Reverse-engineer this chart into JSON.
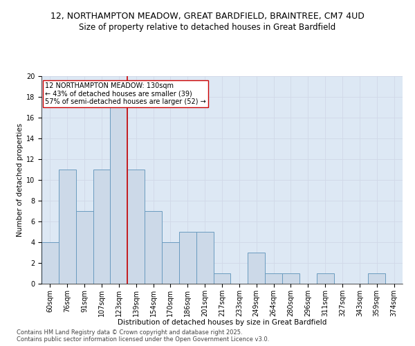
{
  "title_line1": "12, NORTHAMPTON MEADOW, GREAT BARDFIELD, BRAINTREE, CM7 4UD",
  "title_line2": "Size of property relative to detached houses in Great Bardfield",
  "xlabel": "Distribution of detached houses by size in Great Bardfield",
  "ylabel": "Number of detached properties",
  "bar_labels": [
    "60sqm",
    "76sqm",
    "91sqm",
    "107sqm",
    "123sqm",
    "139sqm",
    "154sqm",
    "170sqm",
    "186sqm",
    "201sqm",
    "217sqm",
    "233sqm",
    "249sqm",
    "264sqm",
    "280sqm",
    "296sqm",
    "311sqm",
    "327sqm",
    "343sqm",
    "359sqm",
    "374sqm"
  ],
  "bar_values": [
    4,
    11,
    7,
    11,
    17,
    11,
    7,
    4,
    5,
    5,
    1,
    0,
    3,
    1,
    1,
    0,
    1,
    0,
    0,
    1,
    0
  ],
  "bar_color": "#ccd9e8",
  "bar_edgecolor": "#6a9bbf",
  "vline_color": "#cc0000",
  "vline_x": 4.5,
  "annotation_line1": "12 NORTHAMPTON MEADOW: 130sqm",
  "annotation_line2": "← 43% of detached houses are smaller (39)",
  "annotation_line3": "57% of semi-detached houses are larger (52) →",
  "annotation_box_color": "#ffffff",
  "annotation_box_edge": "#cc0000",
  "ylim": [
    0,
    20
  ],
  "yticks": [
    0,
    2,
    4,
    6,
    8,
    10,
    12,
    14,
    16,
    18,
    20
  ],
  "grid_color": "#d0d8e8",
  "bg_color": "#dde8f4",
  "footnote1": "Contains HM Land Registry data © Crown copyright and database right 2025.",
  "footnote2": "Contains public sector information licensed under the Open Government Licence v3.0.",
  "title_fontsize": 9,
  "subtitle_fontsize": 8.5,
  "label_fontsize": 7.5,
  "tick_fontsize": 7,
  "annot_fontsize": 7
}
